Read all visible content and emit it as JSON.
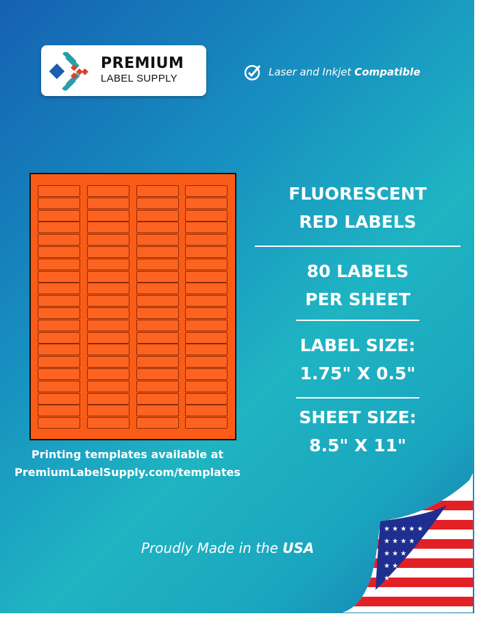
{
  "brand": {
    "line1": "PREMIUM",
    "line2": "LABEL SUPPLY"
  },
  "compat": {
    "text": "Laser and Inkjet",
    "bold": "Compatible",
    "icon": "check-circle-icon"
  },
  "product": {
    "title1": "FLUORESCENT",
    "title2": "RED LABELS",
    "count1": "80 LABELS",
    "count2": "PER SHEET",
    "size_label": "LABEL SIZE:",
    "size_value": "1.75\" X 0.5\"",
    "sheet_label": "SHEET SIZE:",
    "sheet_value": "8.5\" X 11\""
  },
  "sheet": {
    "columns": 4,
    "rows": 20,
    "color": "#fa5c18"
  },
  "templates": {
    "line1": "Printing templates available at",
    "line2": "PremiumLabelSupply.com/templates"
  },
  "footer": {
    "text": "Proudly Made in the",
    "bold": "USA"
  }
}
